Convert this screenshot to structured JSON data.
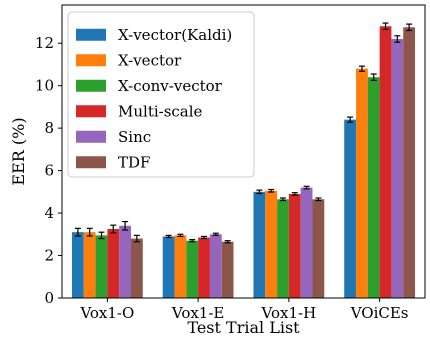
{
  "chart_data": {
    "type": "bar",
    "xlabel": "Test Trial List",
    "ylabel": "EER (%)",
    "ylim": [
      0,
      13.8
    ],
    "yticks": [
      0,
      2,
      4,
      6,
      8,
      10,
      12
    ],
    "categories": [
      "Vox1-O",
      "Vox1-E",
      "Vox1-H",
      "VOiCEs"
    ],
    "legend_position": "top-left",
    "grid": false,
    "series": [
      {
        "name": "X-vector(Kaldi)",
        "color": "#1f77b4",
        "values": [
          3.1,
          2.9,
          5.0,
          8.4
        ],
        "errors": [
          0.18,
          0.05,
          0.08,
          0.12
        ]
      },
      {
        "name": "X-vector",
        "color": "#ff7f0e",
        "values": [
          3.1,
          2.95,
          5.05,
          10.8
        ],
        "errors": [
          0.18,
          0.05,
          0.06,
          0.12
        ]
      },
      {
        "name": "X-conv-vector",
        "color": "#2ca02c",
        "values": [
          2.95,
          2.7,
          4.65,
          10.4
        ],
        "errors": [
          0.15,
          0.05,
          0.06,
          0.15
        ]
      },
      {
        "name": "Multi-scale",
        "color": "#d62728",
        "values": [
          3.25,
          2.85,
          4.9,
          12.8
        ],
        "errors": [
          0.18,
          0.05,
          0.06,
          0.15
        ]
      },
      {
        "name": "Sinc",
        "color": "#9467bd",
        "values": [
          3.4,
          3.0,
          5.2,
          12.2
        ],
        "errors": [
          0.2,
          0.05,
          0.06,
          0.15
        ]
      },
      {
        "name": "TDF",
        "color": "#8c564b",
        "values": [
          2.8,
          2.65,
          4.65,
          12.75
        ],
        "errors": [
          0.15,
          0.05,
          0.06,
          0.15
        ]
      }
    ]
  }
}
